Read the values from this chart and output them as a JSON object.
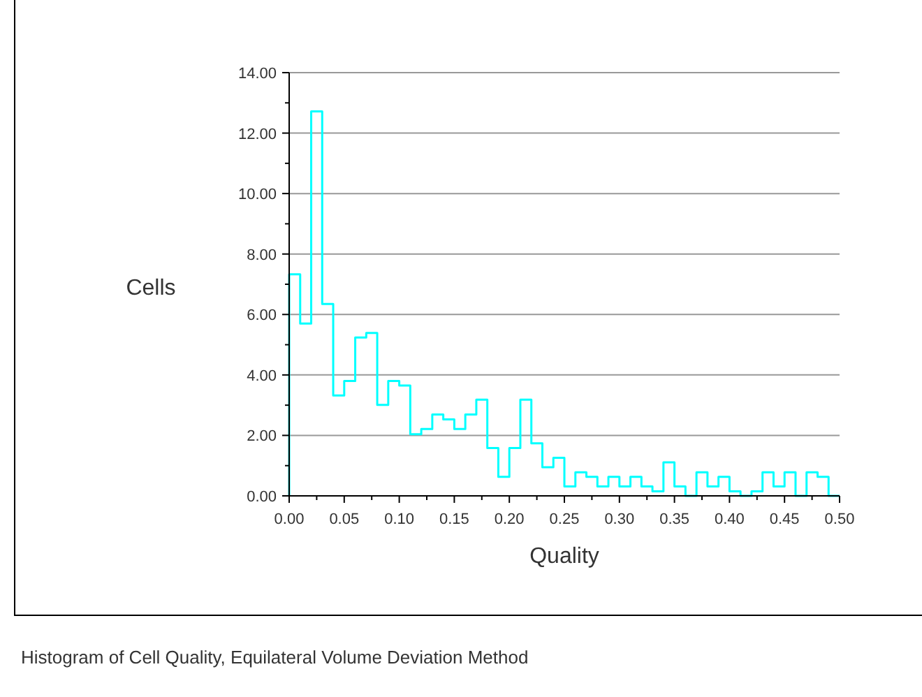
{
  "chart_data": {
    "type": "histogram",
    "xlabel": "Quality",
    "ylabel": "Cells",
    "annotations": [
      "Histogram of Cell Quality, Equilateral Volume Deviation Method"
    ],
    "bins": [
      0,
      0.01,
      0.02,
      0.03,
      0.04,
      0.05,
      0.06,
      0.07,
      0.08,
      0.09,
      0.1,
      0.11,
      0.12,
      0.13,
      0.14,
      0.15,
      0.16,
      0.17,
      0.18,
      0.19,
      0.2,
      0.21,
      0.22,
      0.23,
      0.24,
      0.25,
      0.26,
      0.27,
      0.28,
      0.29,
      0.3,
      0.31,
      0.32,
      0.33,
      0.34,
      0.35,
      0.36,
      0.37,
      0.38,
      0.39,
      0.4,
      0.41,
      0.42,
      0.43,
      0.44,
      0.45,
      0.46,
      0.47,
      0.48,
      0.49,
      0.5
    ],
    "values": [
      7.33,
      5.7,
      12.72,
      6.35,
      3.32,
      3.8,
      5.24,
      5.39,
      3.01,
      3.8,
      3.65,
      2.04,
      2.21,
      2.69,
      2.53,
      2.21,
      2.69,
      3.18,
      1.58,
      0.63,
      1.58,
      3.18,
      1.74,
      0.95,
      1.26,
      0.31,
      0.78,
      0.63,
      0.31,
      0.63,
      0.31,
      0.63,
      0.31,
      0.15,
      1.11,
      0.31,
      0,
      0.78,
      0.31,
      0.63,
      0.15,
      0,
      0.15,
      0.78,
      0.31,
      0.78,
      0,
      0.78,
      0.63,
      0
    ],
    "color": "#00ffff",
    "xlim": [
      0,
      0.5
    ],
    "xticks": [
      {
        "value": 0,
        "label": "0.00"
      },
      {
        "value": 0.025,
        "label": null
      },
      {
        "value": 0.05,
        "label": "0.05"
      },
      {
        "value": 0.075,
        "label": null
      },
      {
        "value": 0.1,
        "label": "0.10"
      },
      {
        "value": 0.125,
        "label": null
      },
      {
        "value": 0.15,
        "label": "0.15"
      },
      {
        "value": 0.175,
        "label": null
      },
      {
        "value": 0.2,
        "label": "0.20"
      },
      {
        "value": 0.225,
        "label": null
      },
      {
        "value": 0.25,
        "label": "0.25"
      },
      {
        "value": 0.275,
        "label": null
      },
      {
        "value": 0.3,
        "label": "0.30"
      },
      {
        "value": 0.325,
        "label": null
      },
      {
        "value": 0.35,
        "label": "0.35"
      },
      {
        "value": 0.375,
        "label": null
      },
      {
        "value": 0.4,
        "label": "0.40"
      },
      {
        "value": 0.425,
        "label": null
      },
      {
        "value": 0.45,
        "label": "0.45"
      },
      {
        "value": 0.475,
        "label": null
      },
      {
        "value": 0.5,
        "label": "0.50"
      }
    ],
    "ylim": [
      0,
      14
    ],
    "yticks": [
      {
        "value": 0,
        "label": "0.00"
      },
      {
        "value": 1,
        "label": null
      },
      {
        "value": 2,
        "label": "2.00"
      },
      {
        "value": 3,
        "label": null
      },
      {
        "value": 4,
        "label": "4.00"
      },
      {
        "value": 5,
        "label": null
      },
      {
        "value": 6,
        "label": "6.00"
      },
      {
        "value": 7,
        "label": null
      },
      {
        "value": 8,
        "label": "8.00"
      },
      {
        "value": 9,
        "label": null
      },
      {
        "value": 10,
        "label": "10.00"
      },
      {
        "value": 11,
        "label": null
      },
      {
        "value": 12,
        "label": "12.00"
      },
      {
        "value": 13,
        "label": null
      },
      {
        "value": 14,
        "label": "14.00"
      }
    ],
    "grid": "y"
  }
}
